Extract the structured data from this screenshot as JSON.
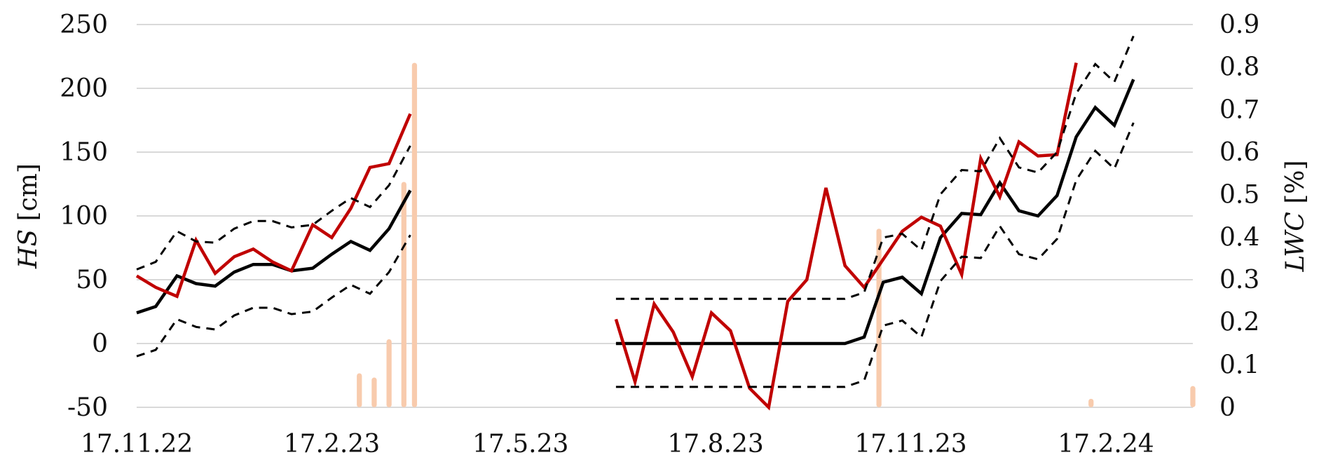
{
  "chart_data": {
    "type": "line",
    "title": "",
    "xlabel": "",
    "ylabel": {
      "variable": "HS",
      "unit": "[cm]"
    },
    "y2label": {
      "variable": "LWC",
      "unit": "[%]"
    },
    "ylim": [
      -50,
      250
    ],
    "y2lim": [
      0,
      0.9
    ],
    "grid": true,
    "legend": "none",
    "x_tick_labels": [
      "17.11.22",
      "17.2.23",
      "17.5.23",
      "17.8.23",
      "17.11.23",
      "17.2.24"
    ],
    "y_tick_labels": [
      "250",
      "200",
      "150",
      "100",
      "50",
      "0",
      "-50"
    ],
    "y2_tick_labels": [
      "0.9",
      "0.8",
      "0.7",
      "0.6",
      "0.5",
      "0.4",
      "0.3",
      "0.2",
      "0.1",
      "0"
    ],
    "colors": {
      "black": "#000000",
      "red": "#c00000",
      "bars": "#f8cbad",
      "grid": "#d9d9d9"
    },
    "series": [
      {
        "color": "#000000",
        "style": "solid",
        "axis": "left",
        "x": [
          "2022-11-17",
          "2022-11-26",
          "2022-12-06",
          "2022-12-15",
          "2022-12-24",
          "2023-01-02",
          "2023-01-11",
          "2023-01-20",
          "2023-01-29",
          "2023-02-08",
          "2023-02-17",
          "2023-02-26",
          "2023-03-07",
          "2023-03-16",
          "2023-03-26",
          "2023-04-05",
          null,
          "2023-07-01",
          "2023-07-10",
          "2023-07-19",
          "2023-07-28",
          "2023-08-06",
          "2023-08-15",
          "2023-08-24",
          "2023-09-02",
          "2023-09-11",
          "2023-09-20",
          "2023-09-29",
          "2023-10-08",
          "2023-10-17",
          "2023-10-26",
          "2023-11-04",
          "2023-11-13",
          "2023-11-22",
          "2023-12-01",
          "2023-12-11",
          "2023-12-20",
          "2023-12-29",
          "2024-01-07",
          "2024-01-16",
          "2024-01-25",
          "2024-02-03",
          "2024-02-12",
          "2024-02-21",
          "2024-03-01",
          "2024-03-10",
          "2024-03-20",
          "2024-03-29"
        ],
        "y": [
          24,
          29,
          53,
          47,
          45,
          56,
          62,
          62,
          57,
          59,
          70,
          80,
          73,
          90,
          120,
          null,
          null,
          0,
          0,
          0,
          0,
          0,
          0,
          0,
          0,
          0,
          0,
          0,
          0,
          0,
          5,
          48,
          52,
          39,
          83,
          102,
          101,
          126,
          104,
          100,
          116,
          162,
          185,
          171,
          207,
          null,
          null,
          null
        ]
      },
      {
        "color": "#c00000",
        "style": "solid",
        "axis": "left",
        "x": [
          "2022-11-17",
          "2022-11-26",
          "2022-12-06",
          "2022-12-15",
          "2022-12-24",
          "2023-01-02",
          "2023-01-11",
          "2023-01-20",
          "2023-01-29",
          "2023-02-08",
          "2023-02-17",
          "2023-02-26",
          "2023-03-07",
          "2023-03-16",
          "2023-03-26",
          "2023-04-05",
          null,
          "2023-07-01",
          "2023-07-10",
          "2023-07-19",
          "2023-07-28",
          "2023-08-06",
          "2023-08-15",
          "2023-08-24",
          "2023-09-02",
          "2023-09-11",
          "2023-09-20",
          "2023-09-29",
          "2023-10-08",
          "2023-10-17",
          "2023-10-26",
          "2023-11-04",
          "2023-11-13",
          "2023-11-22",
          "2023-12-01",
          "2023-12-11",
          "2023-12-20",
          "2023-12-29",
          "2024-01-07",
          "2024-01-16",
          "2024-01-25",
          "2024-02-03",
          "2024-02-12",
          "2024-02-21",
          "2024-03-01",
          "2024-03-10",
          "2024-03-20",
          "2024-03-29"
        ],
        "y": [
          53,
          44,
          37,
          81,
          55,
          68,
          74,
          64,
          57,
          93,
          83,
          106,
          138,
          141,
          180,
          null,
          null,
          19,
          -30,
          31,
          9,
          -26,
          24,
          10,
          -35,
          -50,
          33,
          50,
          122,
          61,
          44,
          66,
          88,
          99,
          92,
          54,
          145,
          115,
          158,
          147,
          148,
          220,
          null,
          null,
          null,
          null,
          null,
          null
        ]
      },
      {
        "color": "#000000",
        "style": "dashed",
        "axis": "left",
        "x": [
          "2022-11-17",
          "2022-11-26",
          "2022-12-06",
          "2022-12-15",
          "2022-12-24",
          "2023-01-02",
          "2023-01-11",
          "2023-01-20",
          "2023-01-29",
          "2023-02-08",
          "2023-02-17",
          "2023-02-26",
          "2023-03-07",
          "2023-03-16",
          "2023-03-26",
          "2023-04-05",
          null,
          "2023-07-01",
          "2023-07-10",
          "2023-07-19",
          "2023-07-28",
          "2023-08-06",
          "2023-08-15",
          "2023-08-24",
          "2023-09-02",
          "2023-09-11",
          "2023-09-20",
          "2023-09-29",
          "2023-10-08",
          "2023-10-17",
          "2023-10-26",
          "2023-11-04",
          "2023-11-13",
          "2023-11-22",
          "2023-12-01",
          "2023-12-11",
          "2023-12-20",
          "2023-12-29",
          "2024-01-07",
          "2024-01-16",
          "2024-01-25",
          "2024-02-03",
          "2024-02-12",
          "2024-02-21",
          "2024-03-01",
          "2024-03-10",
          "2024-03-20",
          "2024-03-29"
        ],
        "y": [
          58,
          64,
          88,
          80,
          79,
          90,
          96,
          96,
          91,
          93,
          104,
          114,
          107,
          124,
          155,
          null,
          null,
          35,
          35,
          35,
          35,
          35,
          35,
          35,
          35,
          35,
          35,
          35,
          35,
          35,
          40,
          83,
          86,
          73,
          117,
          136,
          135,
          161,
          138,
          134,
          150,
          196,
          219,
          205,
          241,
          null,
          null,
          null
        ]
      },
      {
        "color": "#000000",
        "style": "dashed",
        "axis": "left",
        "x": [
          "2022-11-17",
          "2022-11-26",
          "2022-12-06",
          "2022-12-15",
          "2022-12-24",
          "2023-01-02",
          "2023-01-11",
          "2023-01-20",
          "2023-01-29",
          "2023-02-08",
          "2023-02-17",
          "2023-02-26",
          "2023-03-07",
          "2023-03-16",
          "2023-03-26",
          "2023-04-05",
          null,
          "2023-07-01",
          "2023-07-10",
          "2023-07-19",
          "2023-07-28",
          "2023-08-06",
          "2023-08-15",
          "2023-08-24",
          "2023-09-02",
          "2023-09-11",
          "2023-09-20",
          "2023-09-29",
          "2023-10-08",
          "2023-10-17",
          "2023-10-26",
          "2023-11-04",
          "2023-11-13",
          "2023-11-22",
          "2023-12-01",
          "2023-12-11",
          "2023-12-20",
          "2023-12-29",
          "2024-01-07",
          "2024-01-16",
          "2024-01-25",
          "2024-02-03",
          "2024-02-12",
          "2024-02-21",
          "2024-03-01",
          "2024-03-10",
          "2024-03-20",
          "2024-03-29"
        ],
        "y": [
          -10,
          -5,
          19,
          13,
          11,
          22,
          28,
          28,
          23,
          25,
          36,
          46,
          39,
          56,
          85,
          null,
          null,
          -34,
          -34,
          -34,
          -34,
          -34,
          -34,
          -34,
          -34,
          -34,
          -34,
          -34,
          -34,
          -34,
          -29,
          14,
          18,
          5,
          49,
          68,
          67,
          92,
          70,
          66,
          82,
          128,
          151,
          137,
          173,
          null,
          null,
          null
        ]
      }
    ],
    "bars": {
      "color": "#f8cbad",
      "axis": "right",
      "x": [
        "2023-03-02",
        "2023-03-09",
        "2023-03-16",
        "2023-03-23",
        "2023-03-28",
        "2023-11-02",
        "2024-02-10",
        "2024-03-29"
      ],
      "values": [
        0.08,
        0.07,
        0.16,
        0.53,
        0.81,
        0.42,
        0.02,
        0.05
      ]
    }
  }
}
